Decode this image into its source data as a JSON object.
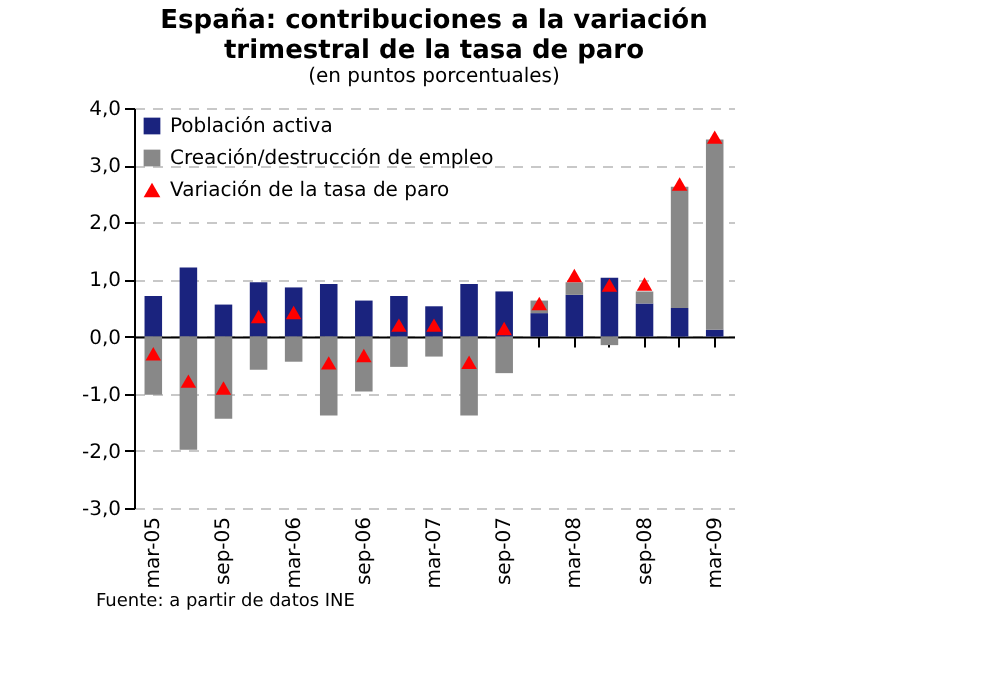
{
  "chart_data": {
    "type": "bar",
    "stacked": true,
    "title": "España: contribuciones a la variación trimestral de la tasa de paro",
    "subtitle": "(en puntos porcentuales)",
    "categories": [
      "mar-05",
      null,
      "sep-05",
      null,
      "mar-06",
      null,
      "sep-06",
      null,
      "mar-07",
      null,
      "sep-07",
      null,
      "mar-08",
      null,
      "sep-08",
      null,
      "mar-09"
    ],
    "series": [
      {
        "name": "Población activa",
        "color": "#1a237e",
        "values": [
          0.71,
          1.21,
          0.56,
          0.95,
          0.86,
          0.92,
          0.63,
          0.71,
          0.53,
          0.92,
          0.79,
          0.41,
          0.73,
          1.03,
          0.58,
          0.5,
          0.12
        ]
      },
      {
        "name": "Creación/destrucción de empleo",
        "color": "#888888",
        "values": [
          -1.02,
          -1.98,
          -1.44,
          -0.58,
          -0.44,
          -1.38,
          -0.96,
          -0.53,
          -0.35,
          -1.38,
          -0.64,
          0.22,
          0.22,
          -0.15,
          0.21,
          2.12,
          3.33
        ]
      },
      {
        "name": "Variación de la tasa de paro",
        "type": "scatter",
        "color": "#ff0000",
        "values": [
          -0.3,
          -0.78,
          -0.9,
          0.35,
          0.42,
          -0.46,
          -0.33,
          0.2,
          0.2,
          -0.45,
          0.14,
          0.58,
          1.07,
          0.9,
          0.92,
          2.67,
          3.49
        ]
      }
    ],
    "ylim": [
      -3,
      4
    ],
    "yticks": [
      {
        "value": -3,
        "label": "-3,0"
      },
      {
        "value": -2,
        "label": "-2,0"
      },
      {
        "value": -1,
        "label": "-1,0"
      },
      {
        "value": 0,
        "label": "0,0"
      },
      {
        "value": 1,
        "label": "1,0"
      },
      {
        "value": 2,
        "label": "2,0"
      },
      {
        "value": 3,
        "label": "3,0"
      },
      {
        "value": 4,
        "label": "4,0"
      }
    ],
    "grid": "y",
    "legend": "top left",
    "marker": "triangle",
    "annotations": [
      "Fuente: a partir de datos INE"
    ]
  }
}
